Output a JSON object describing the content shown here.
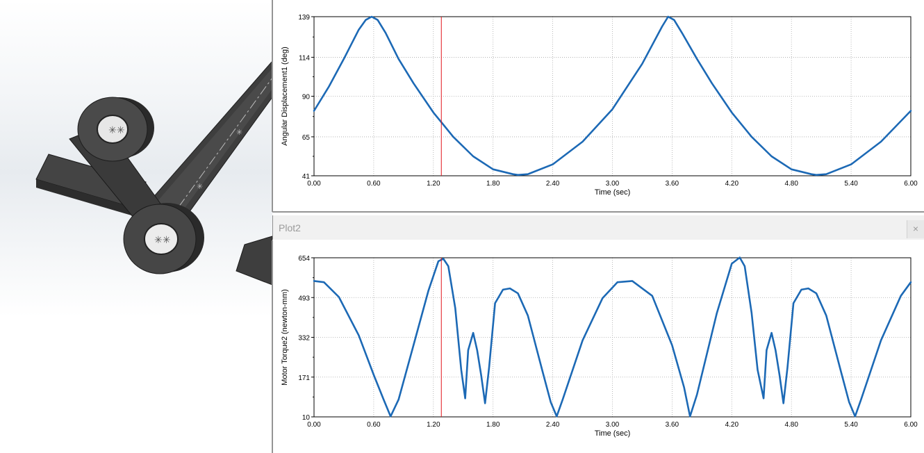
{
  "windows": {
    "plot2_title": "Plot2",
    "close_glyph": "×"
  },
  "icons": {
    "close": "close-icon"
  },
  "colors": {
    "series": "#1c69b5",
    "cursor": "#e0151b",
    "grid": "#a8a8a8",
    "part": "#3f3f3f"
  },
  "chart_data": [
    {
      "type": "line",
      "xlabel": "Time (sec)",
      "ylabel": "Angular Displacement1 (deg)",
      "xlim": [
        0,
        6
      ],
      "ylim": [
        41,
        139
      ],
      "x_ticks": [
        "0.00",
        "0.60",
        "1.20",
        "1.80",
        "2.40",
        "3.00",
        "3.60",
        "4.20",
        "4.80",
        "5.40",
        "6.00"
      ],
      "y_ticks": [
        "41",
        "65",
        "90",
        "114",
        "139"
      ],
      "cursor_x": 1.28,
      "grid": true,
      "series": [
        {
          "x": [
            0.0,
            0.15,
            0.3,
            0.45,
            0.52,
            0.58,
            0.64,
            0.72,
            0.85,
            1.0,
            1.2,
            1.4,
            1.6,
            1.8,
            2.0,
            2.05,
            2.15,
            2.4,
            2.7,
            3.0,
            3.3,
            3.5,
            3.56,
            3.62,
            3.7,
            3.85,
            4.0,
            4.2,
            4.4,
            4.6,
            4.8,
            5.0,
            5.05,
            5.15,
            5.4,
            5.7,
            6.0
          ],
          "y": [
            81,
            96,
            113,
            131,
            137,
            139,
            137,
            129,
            113,
            98,
            80,
            65,
            53,
            45,
            42,
            41.5,
            42,
            48,
            62,
            82,
            110,
            133,
            139,
            137,
            129,
            113,
            98,
            80,
            65,
            53,
            45,
            42,
            41.5,
            42,
            48,
            62,
            81
          ]
        }
      ]
    },
    {
      "type": "line",
      "xlabel": "Time (sec)",
      "ylabel": "Motor Torque2 (newton-mm)",
      "xlim": [
        0,
        6
      ],
      "ylim": [
        10,
        654
      ],
      "x_ticks": [
        "0.00",
        "0.60",
        "1.20",
        "1.80",
        "2.40",
        "3.00",
        "3.60",
        "4.20",
        "4.80",
        "5.40",
        "6.00"
      ],
      "y_ticks": [
        "10",
        "171",
        "332",
        "493",
        "654"
      ],
      "cursor_x": 1.28,
      "grid": true,
      "series": [
        {
          "x": [
            0.0,
            0.1,
            0.25,
            0.45,
            0.6,
            0.7,
            0.77,
            0.85,
            1.0,
            1.15,
            1.25,
            1.3,
            1.35,
            1.42,
            1.48,
            1.52,
            1.55,
            1.6,
            1.64,
            1.68,
            1.72,
            1.76,
            1.82,
            1.9,
            1.97,
            2.05,
            2.15,
            2.3,
            2.38,
            2.44,
            2.5,
            2.7,
            2.9,
            3.05,
            3.2,
            3.4,
            3.6,
            3.72,
            3.78,
            3.85,
            4.05,
            4.2,
            4.28,
            4.33,
            4.4,
            4.46,
            4.52,
            4.55,
            4.6,
            4.64,
            4.68,
            4.72,
            4.76,
            4.82,
            4.9,
            4.97,
            5.05,
            5.15,
            5.3,
            5.38,
            5.44,
            5.5,
            5.7,
            5.9,
            6.0
          ],
          "y": [
            560,
            555,
            495,
            340,
            180,
            80,
            12,
            80,
            300,
            520,
            640,
            650,
            620,
            450,
            200,
            85,
            280,
            350,
            280,
            180,
            65,
            210,
            470,
            525,
            530,
            510,
            420,
            190,
            70,
            12,
            80,
            320,
            490,
            555,
            560,
            500,
            300,
            130,
            12,
            100,
            430,
            630,
            655,
            620,
            430,
            200,
            85,
            280,
            350,
            280,
            180,
            65,
            210,
            470,
            525,
            530,
            510,
            420,
            190,
            70,
            12,
            80,
            320,
            500,
            555
          ]
        }
      ]
    }
  ]
}
